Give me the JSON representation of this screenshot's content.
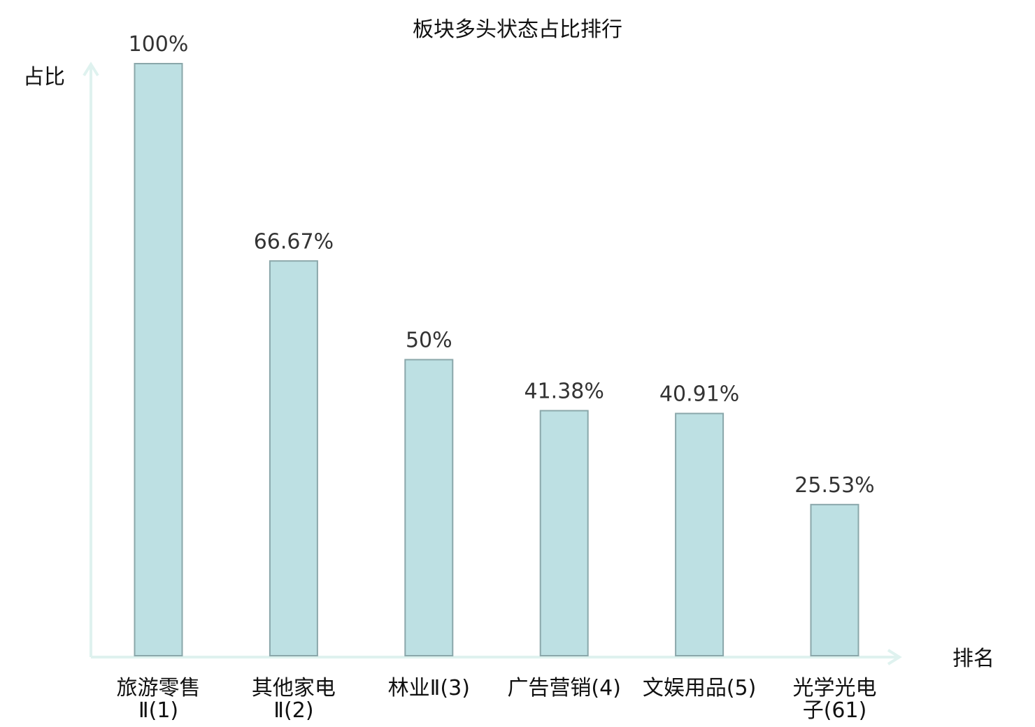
{
  "chart_data": {
    "type": "bar",
    "title": "板块多头状态占比排行",
    "ylabel": "占比",
    "xlabel": "排名",
    "ylim": [
      0,
      100
    ],
    "grid": false,
    "legend": "none",
    "categories": [
      {
        "line1": "旅游零售",
        "line2": "Ⅱ(1)",
        "highlight": false
      },
      {
        "line1": "其他家电",
        "line2": "Ⅱ(2)",
        "highlight": false
      },
      {
        "line1": "林业Ⅱ(3)",
        "line2": "",
        "highlight": false
      },
      {
        "line1": "广告营销(4)",
        "line2": "",
        "highlight": false
      },
      {
        "line1": "文娱用品(5)",
        "line2": "",
        "highlight": false
      },
      {
        "line1": "光学光电",
        "line2": "子(61)",
        "highlight": true
      }
    ],
    "values": [
      100,
      66.67,
      50,
      41.38,
      40.91,
      25.53
    ],
    "value_labels": [
      "100%",
      "66.67%",
      "50%",
      "41.38%",
      "40.91%",
      "25.53%"
    ],
    "colors": {
      "bar_fill": "#bde0e3",
      "bar_stroke": "#8aa7aa",
      "axis": "#dff2ef",
      "highlight": "#e8141b"
    }
  }
}
